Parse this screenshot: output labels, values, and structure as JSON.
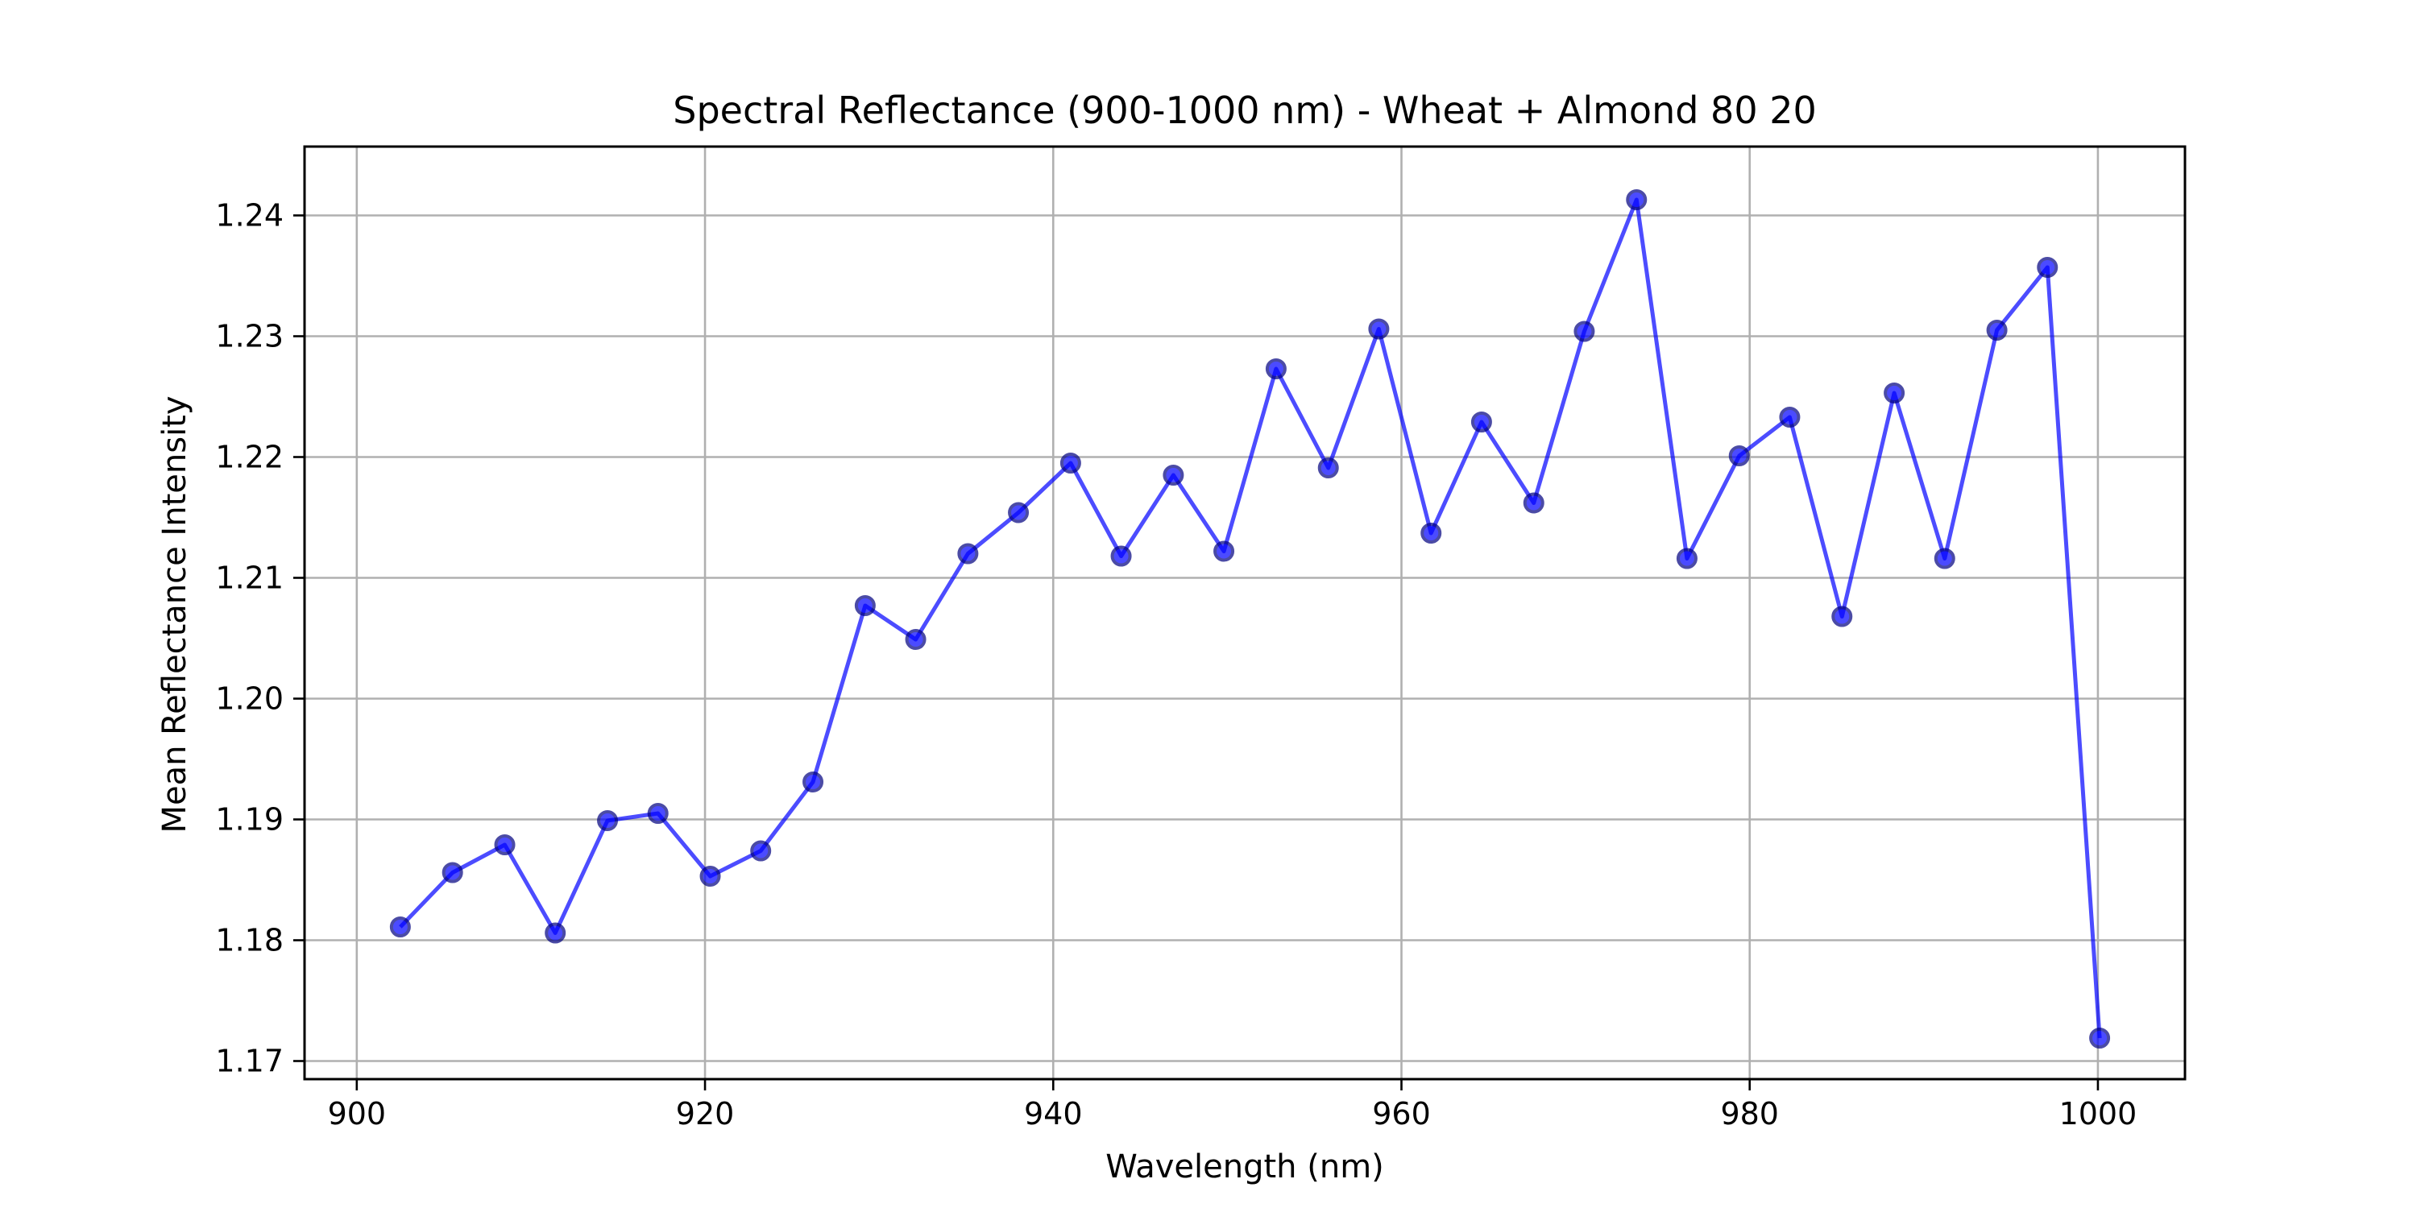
{
  "chart_data": {
    "type": "line",
    "title": "Spectral Reflectance (900-1000 nm) - Wheat + Almond 80 20",
    "xlabel": "Wavelength (nm)",
    "ylabel": "Mean Reflectance Intensity",
    "xlim": [
      897,
      1005
    ],
    "ylim": [
      1.1685,
      1.2457
    ],
    "xticks": [
      900,
      920,
      940,
      960,
      980,
      1000
    ],
    "xtick_labels": [
      "900",
      "920",
      "940",
      "960",
      "980",
      "1000"
    ],
    "yticks": [
      1.17,
      1.18,
      1.19,
      1.2,
      1.21,
      1.22,
      1.23,
      1.24
    ],
    "ytick_labels": [
      "1.17",
      "1.18",
      "1.19",
      "1.20",
      "1.21",
      "1.22",
      "1.23",
      "1.24"
    ],
    "grid": true,
    "legend": false,
    "series": [
      {
        "color": "#0000ff",
        "marker": "circle",
        "x": [
          902.5,
          905.5,
          908.5,
          911.4,
          914.4,
          917.3,
          920.3,
          923.2,
          926.2,
          929.2,
          932.1,
          935.1,
          938.0,
          941.0,
          943.9,
          946.9,
          949.8,
          952.8,
          955.8,
          958.7,
          961.7,
          964.6,
          967.6,
          970.5,
          973.5,
          976.4,
          979.4,
          982.3,
          985.3,
          988.3,
          991.2,
          994.2,
          997.1,
          1000.1
        ],
        "y": [
          1.1811,
          1.1856,
          1.1879,
          1.1806,
          1.1899,
          1.1905,
          1.1853,
          1.1874,
          1.1931,
          1.2077,
          1.2049,
          1.212,
          1.2154,
          1.2195,
          1.2118,
          1.2185,
          1.2122,
          1.2273,
          1.2191,
          1.2306,
          1.2137,
          1.2229,
          1.2162,
          1.2304,
          1.2413,
          1.2116,
          1.2201,
          1.2233,
          1.2068,
          1.2253,
          1.2116,
          1.2305,
          1.2357,
          1.1719
        ]
      }
    ]
  }
}
